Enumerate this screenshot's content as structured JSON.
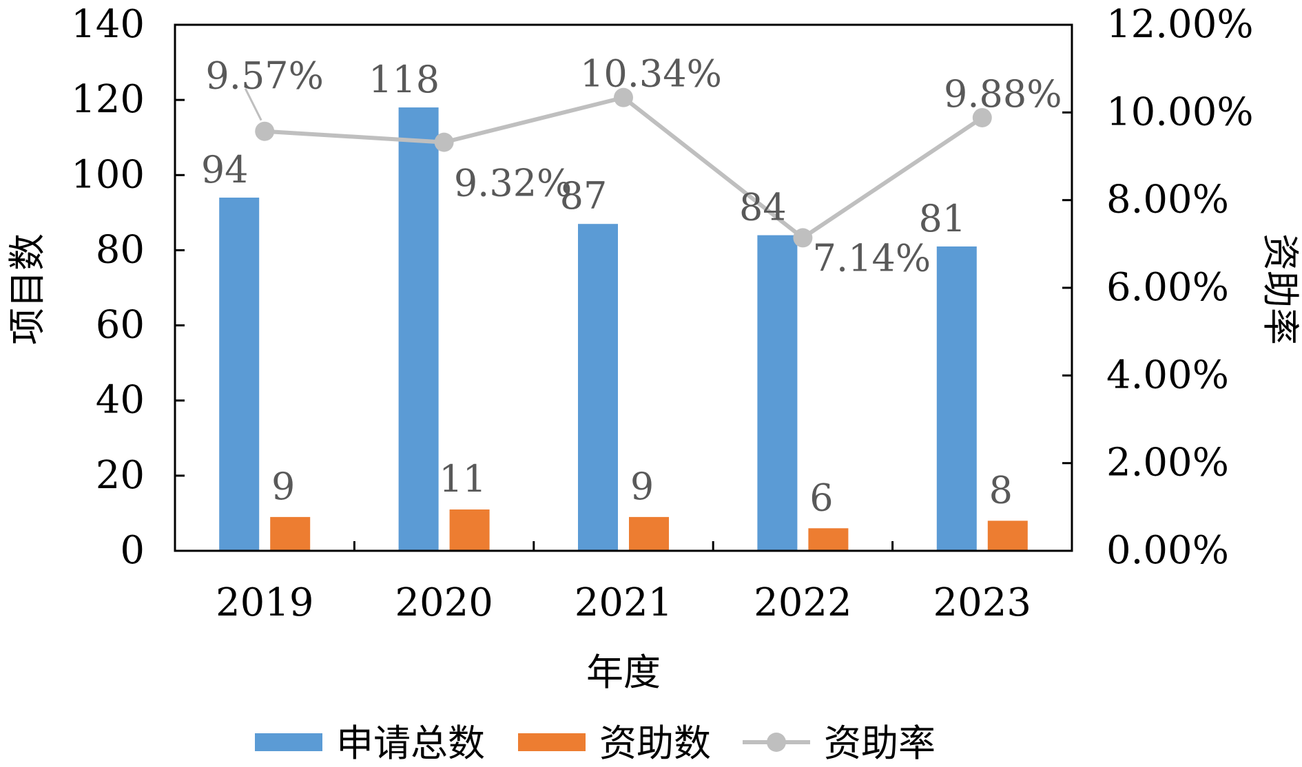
{
  "chart_data": {
    "type": "bar",
    "categories": [
      "2019",
      "2020",
      "2021",
      "2022",
      "2023"
    ],
    "series": [
      {
        "name": "申请总数",
        "kind": "bar",
        "axis": "left",
        "color": "#5B9BD5",
        "values": [
          94,
          118,
          87,
          84,
          81
        ],
        "labels": [
          "94",
          "118",
          "87",
          "84",
          "81"
        ]
      },
      {
        "name": "资助数",
        "kind": "bar",
        "axis": "left",
        "color": "#ED7D31",
        "values": [
          9,
          11,
          9,
          6,
          8
        ],
        "labels": [
          "9",
          "11",
          "9",
          "6",
          "8"
        ]
      },
      {
        "name": "资助率",
        "kind": "line",
        "axis": "right",
        "color": "#BFBFBF",
        "values": [
          9.57,
          9.32,
          10.34,
          7.14,
          9.88
        ],
        "labels": [
          "9.57%",
          "9.32%",
          "10.34%",
          "7.14%",
          "9.88%"
        ]
      }
    ],
    "xlabel": "年度",
    "ylabel": "项目数",
    "y2label": "资助率",
    "ylim": [
      0,
      140
    ],
    "yticks": [
      "0",
      "20",
      "40",
      "60",
      "80",
      "100",
      "120",
      "140"
    ],
    "y2lim": [
      0,
      12
    ],
    "y2ticks": [
      "0.00%",
      "2.00%",
      "4.00%",
      "6.00%",
      "8.00%",
      "10.00%",
      "12.00%"
    ],
    "grid": false,
    "legend_position": "bottom"
  }
}
